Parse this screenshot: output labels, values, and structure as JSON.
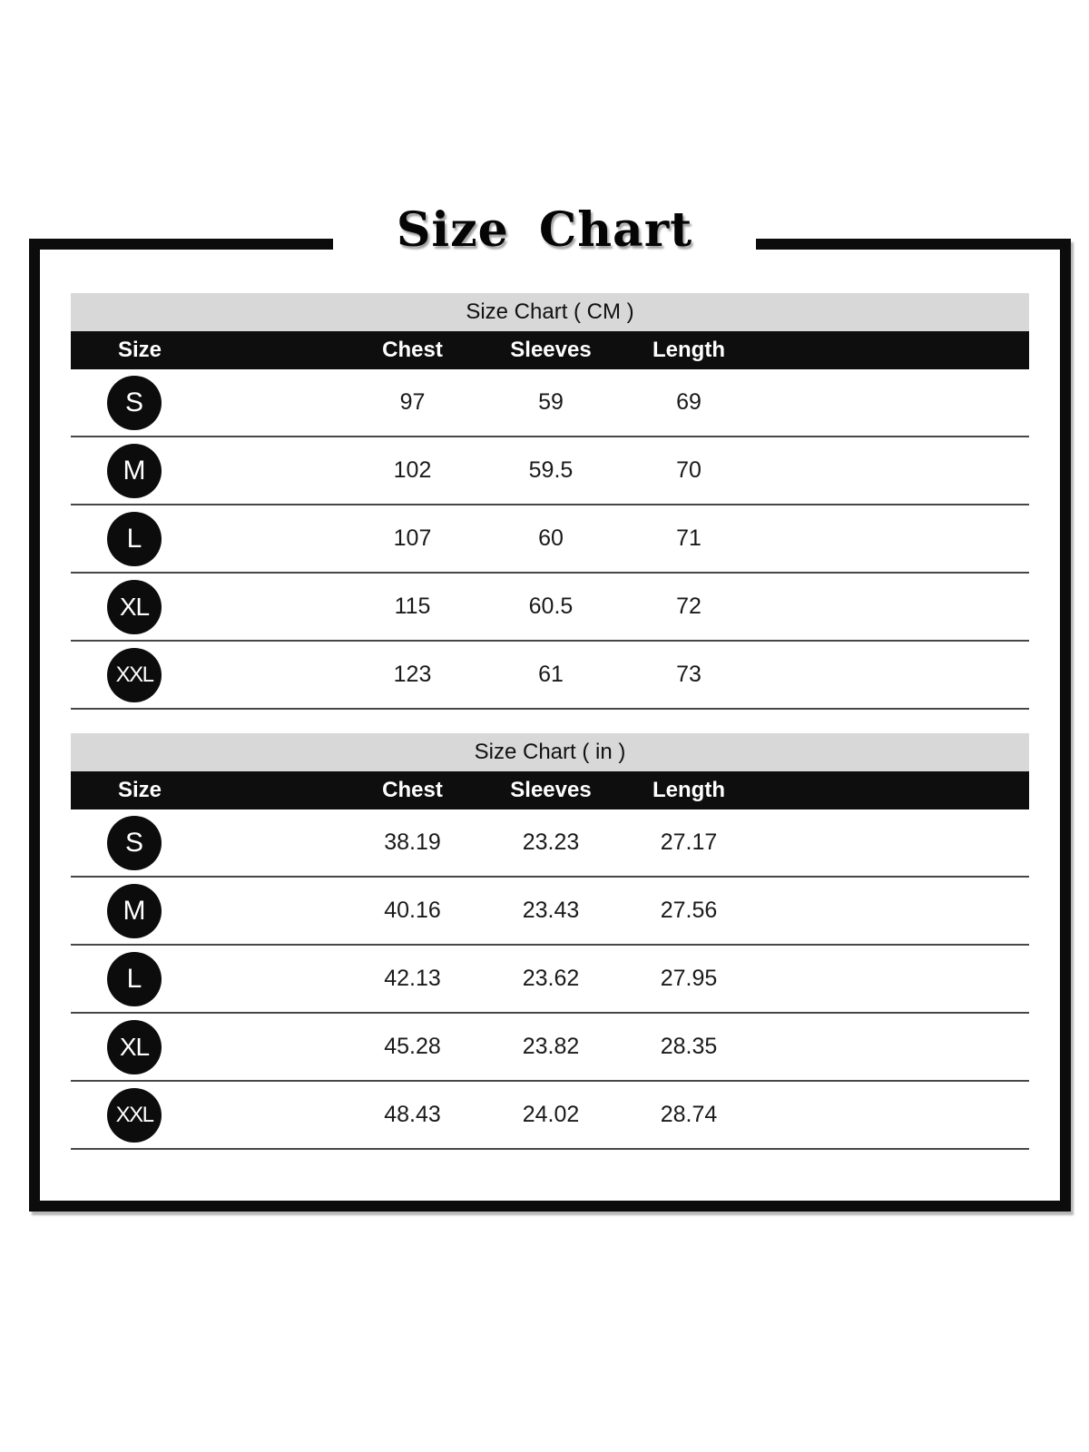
{
  "page": {
    "title": "Size Chart"
  },
  "tables": [
    {
      "title": "Size Chart ( CM )",
      "columns": [
        "Size",
        "Chest",
        "Sleeves",
        "Length"
      ],
      "rows": [
        {
          "size": "S",
          "chest": "97",
          "sleeves": "59",
          "length": "69"
        },
        {
          "size": "M",
          "chest": "102",
          "sleeves": "59.5",
          "length": "70"
        },
        {
          "size": "L",
          "chest": "107",
          "sleeves": "60",
          "length": "71"
        },
        {
          "size": "XL",
          "chest": "115",
          "sleeves": "60.5",
          "length": "72"
        },
        {
          "size": "XXL",
          "chest": "123",
          "sleeves": "61",
          "length": "73"
        }
      ]
    },
    {
      "title": "Size Chart ( in )",
      "columns": [
        "Size",
        "Chest",
        "Sleeves",
        "Length"
      ],
      "rows": [
        {
          "size": "S",
          "chest": "38.19",
          "sleeves": "23.23",
          "length": "27.17"
        },
        {
          "size": "M",
          "chest": "40.16",
          "sleeves": "23.43",
          "length": "27.56"
        },
        {
          "size": "L",
          "chest": "42.13",
          "sleeves": "23.62",
          "length": "27.95"
        },
        {
          "size": "XL",
          "chest": "45.28",
          "sleeves": "23.82",
          "length": "28.35"
        },
        {
          "size": "XXL",
          "chest": "48.43",
          "sleeves": "24.02",
          "length": "28.74"
        }
      ]
    }
  ],
  "colors": {
    "frame_border": "#0c0c0c",
    "header_row_bg": "#0e0e0e",
    "table_title_bg": "#d8d8d8",
    "badge_bg": "#0c0c0c",
    "row_divider": "#474747"
  }
}
